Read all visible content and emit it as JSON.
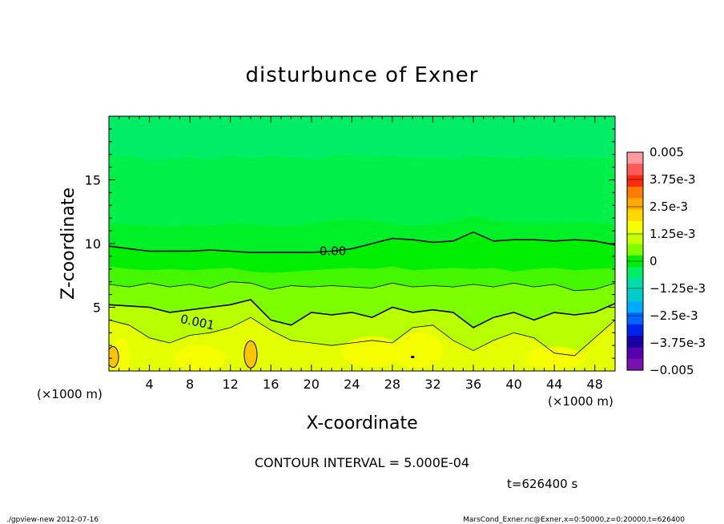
{
  "chart_data": {
    "type": "heatmap",
    "title": "disturbunce of Exner",
    "xlabel": "X-coordinate",
    "ylabel": "Z-coordinate",
    "x_unit_left": "(×1000 m)",
    "x_unit_right": "(×1000 m)",
    "xlim": [
      0,
      50
    ],
    "ylim": [
      0,
      20
    ],
    "x_ticks": [
      4,
      8,
      12,
      16,
      20,
      24,
      28,
      32,
      36,
      40,
      44,
      48
    ],
    "y_ticks": [
      5,
      10,
      15
    ],
    "colorbar": {
      "range": [
        -0.005,
        0.005
      ],
      "tick_labels": [
        "0.005",
        "3.75e-3",
        "2.5e-3",
        "1.25e-3",
        "0",
        "−1.25e-3",
        "−2.5e-3",
        "−3.75e-3",
        "−0.005"
      ],
      "tick_values": [
        0.005,
        0.00375,
        0.0025,
        0.00125,
        0,
        -0.00125,
        -0.0025,
        -0.00375,
        -0.005
      ],
      "colors": [
        "#ff9aa0",
        "#ff5a5a",
        "#ff2a10",
        "#ff7a00",
        "#ffaa00",
        "#ffd800",
        "#f6ff00",
        "#c8ff00",
        "#7dff00",
        "#00ee00",
        "#00ee66",
        "#00ddaa",
        "#00cccc",
        "#00aaff",
        "#0066ff",
        "#0022ee",
        "#1a00aa",
        "#5500aa",
        "#7a10b0"
      ]
    },
    "contour_labels": [
      "0.00",
      "0.001"
    ],
    "contour_interval_text": "CONTOUR INTERVAL = 5.000E-04",
    "time_text": "t=626400 s",
    "footer_left": "./gpview-new  2012-07-16",
    "footer_right": "MarsCond_Exner.nc@Exner,x=0:50000,z=0:20000,t=626400"
  }
}
